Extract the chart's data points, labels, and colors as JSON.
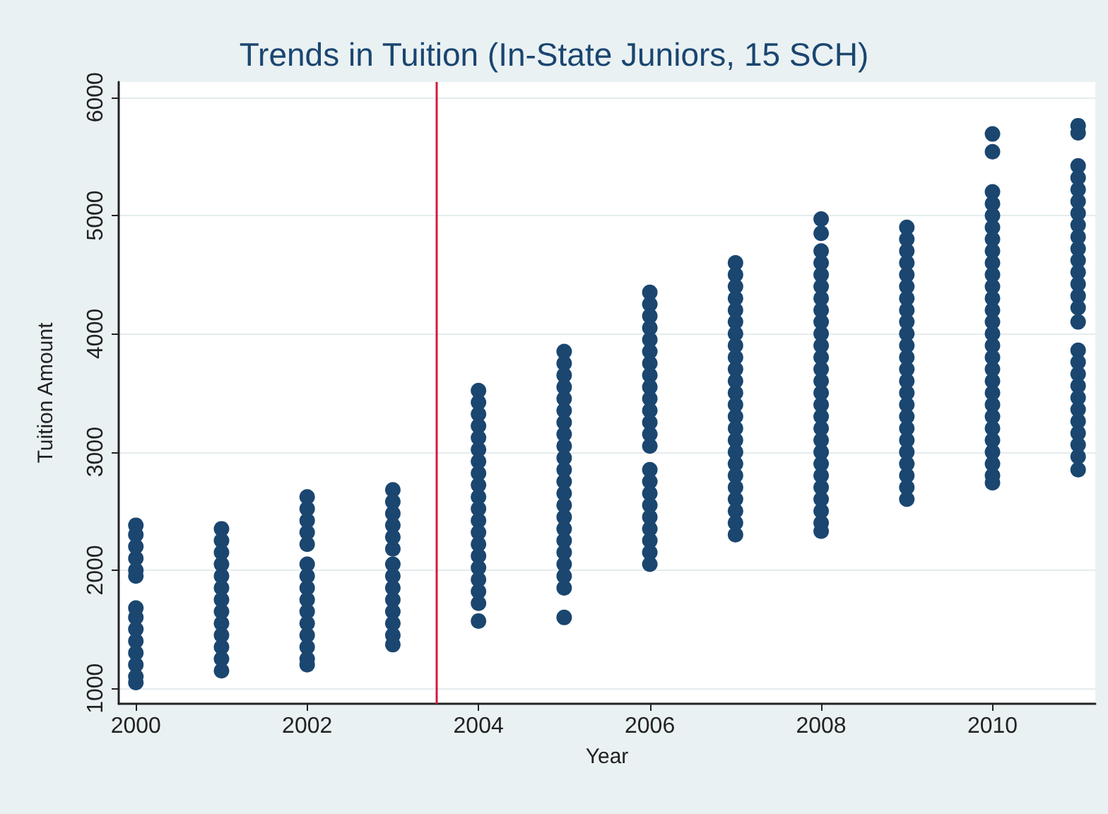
{
  "chart_data": {
    "type": "scatter",
    "title": "Trends in Tuition (In-State Juniors, 15 SCH)",
    "xlabel": "Year",
    "ylabel": "Tuition Amount",
    "xlim": [
      1999.8,
      2011.2
    ],
    "xticks": [
      2000,
      2002,
      2004,
      2006,
      2008,
      2010
    ],
    "ylim": [
      870,
      6130
    ],
    "yticks": [
      1000,
      2000,
      3000,
      4000,
      5000,
      6000
    ],
    "grid": "y",
    "marker": "circle",
    "ref_lines": [
      {
        "axis": "x",
        "value": 2003.5,
        "label": null,
        "color": "#d01c3c"
      }
    ],
    "series": [
      {
        "color": "#1a4670",
        "x": [
          2000,
          2000,
          2000,
          2000,
          2000,
          2000,
          2000,
          2000,
          2000,
          2000,
          2000,
          2000,
          2000,
          2000,
          2001,
          2001,
          2001,
          2001,
          2001,
          2001,
          2001,
          2001,
          2001,
          2001,
          2001,
          2001,
          2001,
          2002,
          2002,
          2002,
          2002,
          2002,
          2002,
          2002,
          2002,
          2002,
          2002,
          2002,
          2002,
          2002,
          2002,
          2002,
          2003,
          2003,
          2003,
          2003,
          2003,
          2003,
          2003,
          2003,
          2003,
          2003,
          2003,
          2003,
          2003,
          2003,
          2004,
          2004,
          2004,
          2004,
          2004,
          2004,
          2004,
          2004,
          2004,
          2004,
          2004,
          2004,
          2004,
          2004,
          2004,
          2004,
          2004,
          2004,
          2004,
          2004,
          2005,
          2005,
          2005,
          2005,
          2005,
          2005,
          2005,
          2005,
          2005,
          2005,
          2005,
          2005,
          2005,
          2005,
          2005,
          2005,
          2005,
          2005,
          2005,
          2005,
          2005,
          2005,
          2006,
          2006,
          2006,
          2006,
          2006,
          2006,
          2006,
          2006,
          2006,
          2006,
          2006,
          2006,
          2006,
          2006,
          2006,
          2006,
          2006,
          2006,
          2006,
          2006,
          2006,
          2006,
          2006,
          2007,
          2007,
          2007,
          2007,
          2007,
          2007,
          2007,
          2007,
          2007,
          2007,
          2007,
          2007,
          2007,
          2007,
          2007,
          2007,
          2007,
          2007,
          2007,
          2007,
          2007,
          2007,
          2007,
          2007,
          2008,
          2008,
          2008,
          2008,
          2008,
          2008,
          2008,
          2008,
          2008,
          2008,
          2008,
          2008,
          2008,
          2008,
          2008,
          2008,
          2008,
          2008,
          2008,
          2008,
          2008,
          2008,
          2008,
          2008,
          2008,
          2008,
          2008,
          2009,
          2009,
          2009,
          2009,
          2009,
          2009,
          2009,
          2009,
          2009,
          2009,
          2009,
          2009,
          2009,
          2009,
          2009,
          2009,
          2009,
          2009,
          2009,
          2009,
          2009,
          2009,
          2009,
          2009,
          2010,
          2010,
          2010,
          2010,
          2010,
          2010,
          2010,
          2010,
          2010,
          2010,
          2010,
          2010,
          2010,
          2010,
          2010,
          2010,
          2010,
          2010,
          2010,
          2010,
          2010,
          2010,
          2010,
          2010,
          2010,
          2010,
          2010,
          2010,
          2011,
          2011,
          2011,
          2011,
          2011,
          2011,
          2011,
          2011,
          2011,
          2011,
          2011,
          2011,
          2011,
          2011,
          2011,
          2011,
          2011,
          2011,
          2011,
          2011,
          2011,
          2011,
          2011,
          2011,
          2011,
          2011,
          2011
        ],
        "values": [
          2380,
          2300,
          2200,
          2100,
          2000,
          1950,
          1680,
          1600,
          1500,
          1400,
          1300,
          1200,
          1100,
          1050,
          2350,
          2250,
          2150,
          2050,
          1950,
          1850,
          1750,
          1650,
          1550,
          1450,
          1350,
          1250,
          1150,
          2620,
          2520,
          2420,
          2320,
          2220,
          2050,
          1950,
          1850,
          1750,
          1650,
          1550,
          1450,
          1350,
          1250,
          1200,
          2680,
          2580,
          2480,
          2380,
          2280,
          2180,
          2050,
          1950,
          1850,
          1750,
          1650,
          1550,
          1450,
          1370,
          3520,
          3420,
          3320,
          3220,
          3120,
          3020,
          2920,
          2820,
          2720,
          2620,
          2520,
          2420,
          2320,
          2220,
          2120,
          2020,
          1920,
          1820,
          1720,
          1570,
          3850,
          3750,
          3650,
          3550,
          3450,
          3350,
          3250,
          3150,
          3050,
          2950,
          2850,
          2750,
          2650,
          2550,
          2450,
          2350,
          2250,
          2150,
          2050,
          1950,
          1850,
          1600,
          4350,
          4250,
          4150,
          4050,
          3950,
          3850,
          3750,
          3650,
          3550,
          3450,
          3350,
          3250,
          3150,
          3050,
          2850,
          2750,
          2650,
          2550,
          2450,
          2350,
          2250,
          2150,
          2050,
          4600,
          4500,
          4400,
          4300,
          4200,
          4100,
          4000,
          3900,
          3800,
          3700,
          3600,
          3500,
          3400,
          3300,
          3200,
          3100,
          3000,
          2900,
          2800,
          2700,
          2600,
          2500,
          2400,
          2300,
          4970,
          4850,
          4700,
          4600,
          4500,
          4400,
          4300,
          4200,
          4100,
          4000,
          3900,
          3800,
          3700,
          3600,
          3500,
          3400,
          3300,
          3200,
          3100,
          3000,
          2900,
          2800,
          2700,
          2600,
          2500,
          2400,
          2330,
          4900,
          4800,
          4700,
          4600,
          4500,
          4400,
          4300,
          4200,
          4100,
          4000,
          3900,
          3800,
          3700,
          3600,
          3500,
          3400,
          3300,
          3200,
          3100,
          3000,
          2900,
          2800,
          2700,
          2600,
          5690,
          5540,
          5200,
          5100,
          5000,
          4900,
          4800,
          4700,
          4600,
          4500,
          4400,
          4300,
          4200,
          4100,
          4000,
          3900,
          3800,
          3700,
          3600,
          3500,
          3400,
          3300,
          3200,
          3100,
          3000,
          2900,
          2800,
          2740,
          5760,
          5700,
          5420,
          5320,
          5220,
          5120,
          5020,
          4920,
          4820,
          4720,
          4620,
          4520,
          4420,
          4320,
          4220,
          4100,
          3860,
          3760,
          3660,
          3560,
          3460,
          3360,
          3260,
          3160,
          3060,
          2960,
          2850
        ]
      }
    ]
  }
}
